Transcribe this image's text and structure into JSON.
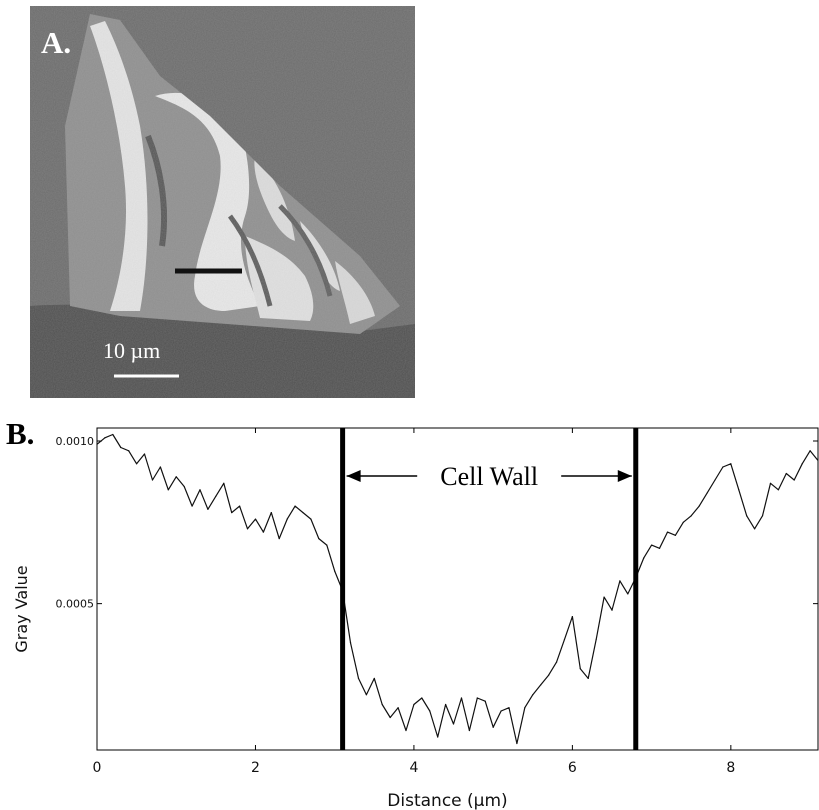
{
  "panel_a": {
    "label": "A.",
    "scale_bar_label": "10 µm"
  },
  "panel_b": {
    "label": "B."
  },
  "chart_data": {
    "type": "line",
    "title": "",
    "xlabel": "Distance (µm)",
    "ylabel": "Gray Value",
    "xlim": [
      0,
      9.1
    ],
    "ylim": [
      5e-05,
      0.00104
    ],
    "x_ticks": [
      0,
      2,
      4,
      6,
      8
    ],
    "x_tick_labels": [
      "0",
      "2",
      "4",
      "6",
      "8"
    ],
    "y_ticks": [
      0.0005,
      0.001
    ],
    "y_tick_labels": [
      "0.0005",
      "0.0010"
    ],
    "grid": false,
    "series": [
      {
        "x": [
          0,
          0.1,
          0.2,
          0.3,
          0.4,
          0.5,
          0.6,
          0.7,
          0.8,
          0.9,
          1.0,
          1.1,
          1.2,
          1.3,
          1.4,
          1.5,
          1.6,
          1.7,
          1.8,
          1.9,
          2.0,
          2.1,
          2.2,
          2.3,
          2.4,
          2.5,
          2.6,
          2.7,
          2.8,
          2.9,
          3.0,
          3.1,
          3.2,
          3.3,
          3.4,
          3.5,
          3.6,
          3.7,
          3.8,
          3.9,
          4.0,
          4.1,
          4.2,
          4.3,
          4.4,
          4.5,
          4.6,
          4.7,
          4.8,
          4.9,
          5.0,
          5.1,
          5.2,
          5.3,
          5.4,
          5.5,
          5.6,
          5.7,
          5.8,
          5.9,
          6.0,
          6.1,
          6.2,
          6.3,
          6.4,
          6.5,
          6.6,
          6.7,
          6.8,
          6.9,
          7.0,
          7.1,
          7.2,
          7.3,
          7.4,
          7.5,
          7.6,
          7.7,
          7.8,
          7.9,
          8.0,
          8.1,
          8.2,
          8.3,
          8.4,
          8.5,
          8.6,
          8.7,
          8.8,
          8.9,
          9.0,
          9.1
        ],
        "y": [
          0.00099,
          0.00101,
          0.00102,
          0.00098,
          0.00097,
          0.00093,
          0.00096,
          0.00088,
          0.00092,
          0.00085,
          0.00089,
          0.00086,
          0.0008,
          0.00085,
          0.00079,
          0.00083,
          0.00087,
          0.00078,
          0.0008,
          0.00073,
          0.00076,
          0.00072,
          0.00078,
          0.0007,
          0.00076,
          0.0008,
          0.00078,
          0.00076,
          0.0007,
          0.00068,
          0.0006,
          0.00054,
          0.00038,
          0.00027,
          0.00022,
          0.00027,
          0.00019,
          0.00015,
          0.00018,
          0.00011,
          0.00019,
          0.00021,
          0.00017,
          9e-05,
          0.00019,
          0.00013,
          0.00021,
          0.00011,
          0.00021,
          0.0002,
          0.00012,
          0.00017,
          0.00018,
          7e-05,
          0.00018,
          0.00022,
          0.00025,
          0.00028,
          0.00032,
          0.00039,
          0.00046,
          0.0003,
          0.00027,
          0.00039,
          0.00052,
          0.00048,
          0.00057,
          0.00053,
          0.00058,
          0.00064,
          0.00068,
          0.00067,
          0.00072,
          0.00071,
          0.00075,
          0.00077,
          0.0008,
          0.00084,
          0.00088,
          0.00092,
          0.00093,
          0.00085,
          0.00077,
          0.00073,
          0.00077,
          0.00087,
          0.00085,
          0.0009,
          0.00088,
          0.00093,
          0.00097,
          0.00094
        ]
      }
    ],
    "markers": [
      {
        "x": 3.1
      },
      {
        "x": 6.8
      }
    ],
    "annotation": {
      "text": "Cell Wall",
      "x_start": 3.1,
      "x_end": 6.8
    }
  }
}
